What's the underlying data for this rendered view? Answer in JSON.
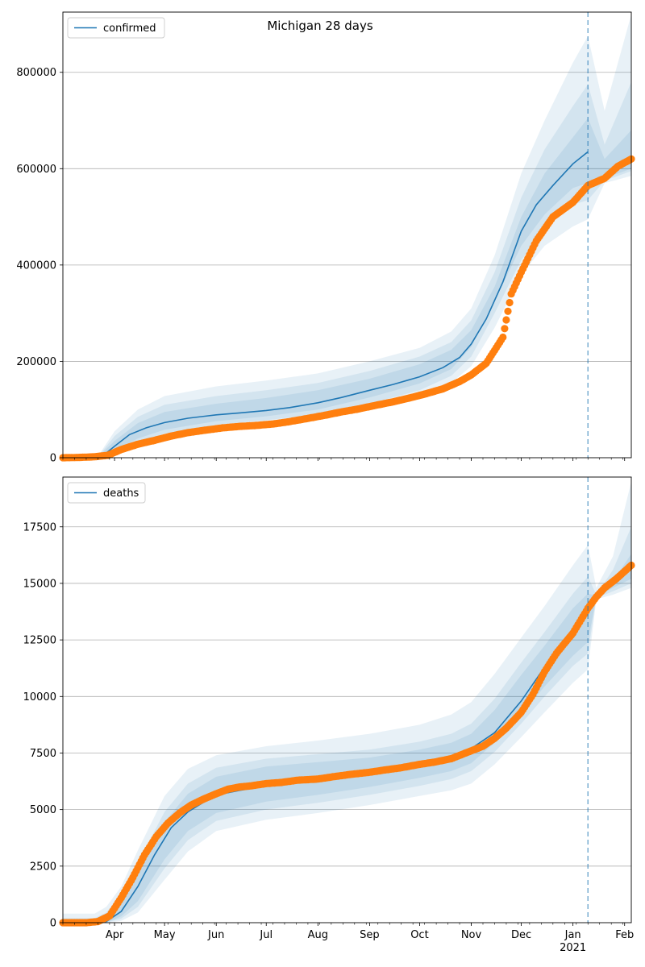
{
  "figure": {
    "title": "Michigan 28 days"
  },
  "chart_data": [
    {
      "type": "line",
      "name": "confirmed",
      "legend": {
        "label": "confirmed",
        "placement": "upper-left"
      },
      "x_axis": {
        "range": [
          "2020-03-01",
          "2021-02-05"
        ],
        "major_ticks": [
          {
            "date": "2020-04-01",
            "label": "Apr"
          },
          {
            "date": "2020-05-01",
            "label": "May"
          },
          {
            "date": "2020-06-01",
            "label": "Jun"
          },
          {
            "date": "2020-07-01",
            "label": "Jul"
          },
          {
            "date": "2020-08-01",
            "label": "Aug"
          },
          {
            "date": "2020-09-01",
            "label": "Sep"
          },
          {
            "date": "2020-10-01",
            "label": "Oct"
          },
          {
            "date": "2020-11-01",
            "label": "Nov"
          },
          {
            "date": "2020-12-01",
            "label": "Dec"
          },
          {
            "date": "2021-01-01",
            "label": "Jan",
            "sublabel": "2021"
          },
          {
            "date": "2021-02-01",
            "label": "Feb"
          }
        ]
      },
      "y_axis": {
        "range": [
          0,
          925000
        ],
        "ticks": [
          0,
          200000,
          400000,
          600000,
          800000
        ],
        "grid": true
      },
      "vline_date": "2021-01-10",
      "model_line": {
        "x": [
          "2020-03-01",
          "2020-03-20",
          "2020-03-25",
          "2020-04-01",
          "2020-04-10",
          "2020-04-20",
          "2020-05-01",
          "2020-05-15",
          "2020-06-01",
          "2020-06-15",
          "2020-07-01",
          "2020-07-15",
          "2020-08-01",
          "2020-08-15",
          "2020-09-01",
          "2020-09-15",
          "2020-10-01",
          "2020-10-15",
          "2020-10-25",
          "2020-11-01",
          "2020-11-10",
          "2020-11-20",
          "2020-12-01",
          "2020-12-10",
          "2020-12-20",
          "2021-01-01",
          "2021-01-10"
        ],
        "y": [
          0,
          1000,
          4000,
          24000,
          48000,
          62000,
          73000,
          82000,
          89000,
          93000,
          98000,
          104000,
          114000,
          125000,
          140000,
          152000,
          168000,
          187000,
          208000,
          236000,
          288000,
          365000,
          470000,
          525000,
          565000,
          610000,
          635000
        ]
      },
      "bands": [
        {
          "x": [
            "2020-03-01",
            "2020-03-22",
            "2020-04-01",
            "2020-04-15",
            "2020-05-01",
            "2020-06-01",
            "2020-07-01",
            "2020-08-01",
            "2020-09-01",
            "2020-10-01",
            "2020-10-20",
            "2020-11-01",
            "2020-11-15",
            "2020-12-01",
            "2020-12-15",
            "2021-01-01",
            "2021-01-10",
            "2021-01-20",
            "2021-02-05"
          ],
          "upper": [
            0,
            3000,
            55000,
            100000,
            128000,
            148000,
            160000,
            175000,
            200000,
            228000,
            262000,
            310000,
            420000,
            590000,
            700000,
            820000,
            875000,
            720000,
            920000
          ],
          "lower": [
            0,
            0,
            5000,
            25000,
            40000,
            58000,
            65000,
            78000,
            100000,
            125000,
            155000,
            190000,
            270000,
            380000,
            440000,
            480000,
            495000,
            570000,
            585000
          ]
        },
        {
          "x": [
            "2020-03-01",
            "2020-03-22",
            "2020-04-01",
            "2020-04-15",
            "2020-05-01",
            "2020-06-01",
            "2020-07-01",
            "2020-08-01",
            "2020-09-01",
            "2020-10-01",
            "2020-10-20",
            "2020-11-01",
            "2020-11-15",
            "2020-12-01",
            "2020-12-15",
            "2021-01-01",
            "2021-01-10",
            "2021-01-20",
            "2021-02-05"
          ],
          "upper": [
            0,
            2000,
            45000,
            85000,
            110000,
            128000,
            140000,
            155000,
            180000,
            210000,
            240000,
            285000,
            385000,
            540000,
            640000,
            730000,
            775000,
            650000,
            780000
          ],
          "lower": [
            0,
            0,
            10000,
            32000,
            50000,
            68000,
            78000,
            90000,
            112000,
            140000,
            170000,
            210000,
            300000,
            410000,
            475000,
            525000,
            535000,
            575000,
            595000
          ]
        },
        {
          "x": [
            "2020-03-01",
            "2020-03-22",
            "2020-04-01",
            "2020-04-15",
            "2020-05-01",
            "2020-06-01",
            "2020-07-01",
            "2020-08-01",
            "2020-09-01",
            "2020-10-01",
            "2020-10-20",
            "2020-11-01",
            "2020-11-15",
            "2020-12-01",
            "2020-12-15",
            "2021-01-01",
            "2021-01-10",
            "2021-01-20",
            "2021-02-05"
          ],
          "upper": [
            0,
            1500,
            35000,
            72000,
            95000,
            112000,
            124000,
            140000,
            164000,
            194000,
            224000,
            265000,
            355000,
            500000,
            590000,
            665000,
            705000,
            620000,
            680000
          ],
          "lower": [
            0,
            0,
            15000,
            40000,
            58000,
            76000,
            86000,
            100000,
            125000,
            154000,
            184000,
            230000,
            325000,
            440000,
            505000,
            560000,
            570000,
            580000,
            600000
          ]
        }
      ],
      "observed": {
        "x": [
          "2020-03-01",
          "2020-03-10",
          "2020-03-20",
          "2020-03-28",
          "2020-04-05",
          "2020-04-15",
          "2020-04-25",
          "2020-05-05",
          "2020-05-15",
          "2020-05-25",
          "2020-06-05",
          "2020-06-15",
          "2020-06-25",
          "2020-07-05",
          "2020-07-15",
          "2020-07-25",
          "2020-08-05",
          "2020-08-15",
          "2020-08-25",
          "2020-09-05",
          "2020-09-15",
          "2020-09-25",
          "2020-10-05",
          "2020-10-15",
          "2020-10-25",
          "2020-11-01",
          "2020-11-10",
          "2020-11-20",
          "2020-11-25",
          "2020-12-01",
          "2020-12-10",
          "2020-12-20",
          "2021-01-01",
          "2021-01-10",
          "2021-01-20",
          "2021-01-28",
          "2021-02-05"
        ],
        "y": [
          0,
          500,
          2000,
          5000,
          17000,
          28000,
          36000,
          45000,
          52000,
          57000,
          62000,
          65000,
          67000,
          70000,
          75000,
          81000,
          88000,
          95000,
          101000,
          109000,
          116000,
          124000,
          133000,
          143000,
          158000,
          172000,
          196000,
          250000,
          340000,
          385000,
          450000,
          500000,
          530000,
          565000,
          580000,
          605000,
          620000
        ]
      }
    },
    {
      "type": "line",
      "name": "deaths",
      "legend": {
        "label": "deaths",
        "placement": "upper-left"
      },
      "x_axis": {
        "range": [
          "2020-03-01",
          "2021-02-05"
        ],
        "major_ticks": [
          {
            "date": "2020-04-01",
            "label": "Apr"
          },
          {
            "date": "2020-05-01",
            "label": "May"
          },
          {
            "date": "2020-06-01",
            "label": "Jun"
          },
          {
            "date": "2020-07-01",
            "label": "Jul"
          },
          {
            "date": "2020-08-01",
            "label": "Aug"
          },
          {
            "date": "2020-09-01",
            "label": "Sep"
          },
          {
            "date": "2020-10-01",
            "label": "Oct"
          },
          {
            "date": "2020-11-01",
            "label": "Nov"
          },
          {
            "date": "2020-12-01",
            "label": "Dec"
          },
          {
            "date": "2021-01-01",
            "label": "Jan",
            "sublabel": "2021"
          },
          {
            "date": "2021-02-01",
            "label": "Feb"
          }
        ]
      },
      "y_axis": {
        "range": [
          0,
          19700
        ],
        "ticks": [
          0,
          2500,
          5000,
          7500,
          10000,
          12500,
          15000,
          17500
        ],
        "grid": true
      },
      "vline_date": "2021-01-10",
      "model_line": {
        "x": [
          "2020-03-01",
          "2020-03-20",
          "2020-03-27",
          "2020-04-05",
          "2020-04-15",
          "2020-04-25",
          "2020-05-05",
          "2020-05-15",
          "2020-05-25",
          "2020-06-05",
          "2020-06-15",
          "2020-07-01",
          "2020-07-15",
          "2020-08-01",
          "2020-08-15",
          "2020-09-01",
          "2020-09-15",
          "2020-10-01",
          "2020-10-15",
          "2020-11-01",
          "2020-11-15",
          "2020-12-01",
          "2020-12-15",
          "2021-01-01",
          "2021-01-10"
        ],
        "y": [
          0,
          0,
          50,
          500,
          1600,
          3000,
          4200,
          4900,
          5350,
          5700,
          5850,
          6050,
          6200,
          6350,
          6500,
          6700,
          6850,
          7050,
          7250,
          7700,
          8400,
          9800,
          11300,
          12900,
          13900
        ]
      },
      "bands": [
        {
          "x": [
            "2020-03-01",
            "2020-03-20",
            "2020-03-27",
            "2020-04-05",
            "2020-04-15",
            "2020-05-01",
            "2020-05-15",
            "2020-06-01",
            "2020-07-01",
            "2020-08-01",
            "2020-09-01",
            "2020-10-01",
            "2020-10-20",
            "2020-11-01",
            "2020-11-15",
            "2020-12-01",
            "2020-12-15",
            "2021-01-01",
            "2021-01-10",
            "2021-01-15",
            "2021-01-25",
            "2021-02-05"
          ],
          "upper": [
            400,
            400,
            700,
            1600,
            3200,
            5600,
            6800,
            7400,
            7800,
            8050,
            8350,
            8750,
            9200,
            9750,
            11000,
            12600,
            14000,
            15800,
            16700,
            14800,
            16200,
            19500
          ],
          "lower": [
            0,
            0,
            0,
            80,
            450,
            1900,
            3150,
            4050,
            4550,
            4850,
            5200,
            5600,
            5850,
            6150,
            7000,
            8200,
            9300,
            10600,
            11200,
            14300,
            14500,
            14800
          ]
        },
        {
          "x": [
            "2020-03-01",
            "2020-03-20",
            "2020-03-27",
            "2020-04-05",
            "2020-04-15",
            "2020-05-01",
            "2020-05-15",
            "2020-06-01",
            "2020-07-01",
            "2020-08-01",
            "2020-09-01",
            "2020-10-01",
            "2020-10-20",
            "2020-11-01",
            "2020-11-15",
            "2020-12-01",
            "2020-12-15",
            "2021-01-01",
            "2021-01-10",
            "2021-01-15",
            "2021-01-25",
            "2021-02-05"
          ],
          "upper": [
            200,
            200,
            450,
            1250,
            2650,
            4900,
            6150,
            6850,
            7250,
            7450,
            7650,
            8000,
            8350,
            8800,
            9900,
            11500,
            12850,
            14550,
            15300,
            14500,
            15600,
            17500
          ],
          "lower": [
            0,
            0,
            0,
            180,
            700,
            2400,
            3650,
            4500,
            5000,
            5300,
            5650,
            6050,
            6350,
            6700,
            7550,
            8800,
            10000,
            11350,
            11900,
            14350,
            14650,
            15000
          ]
        },
        {
          "x": [
            "2020-03-01",
            "2020-03-20",
            "2020-03-27",
            "2020-04-05",
            "2020-04-15",
            "2020-05-01",
            "2020-05-15",
            "2020-06-01",
            "2020-07-01",
            "2020-08-01",
            "2020-09-01",
            "2020-10-01",
            "2020-10-20",
            "2020-11-01",
            "2020-11-15",
            "2020-12-01",
            "2020-12-15",
            "2021-01-01",
            "2021-01-10",
            "2021-01-15",
            "2021-01-25",
            "2021-02-05"
          ],
          "upper": [
            100,
            100,
            300,
            1000,
            2250,
            4450,
            5700,
            6450,
            6900,
            7100,
            7300,
            7650,
            7950,
            8350,
            9400,
            10950,
            12250,
            13900,
            14550,
            14450,
            15100,
            16300
          ],
          "lower": [
            0,
            0,
            0,
            280,
            950,
            2800,
            4050,
            4850,
            5350,
            5650,
            6000,
            6400,
            6700,
            7050,
            7950,
            9200,
            10450,
            11800,
            12400,
            14400,
            14800,
            15200
          ]
        }
      ],
      "observed": {
        "x": [
          "2020-03-01",
          "2020-03-15",
          "2020-03-22",
          "2020-03-29",
          "2020-04-05",
          "2020-04-12",
          "2020-04-19",
          "2020-04-26",
          "2020-05-03",
          "2020-05-10",
          "2020-05-17",
          "2020-05-24",
          "2020-06-01",
          "2020-06-08",
          "2020-06-15",
          "2020-06-22",
          "2020-07-01",
          "2020-07-10",
          "2020-07-20",
          "2020-08-01",
          "2020-08-10",
          "2020-08-20",
          "2020-09-01",
          "2020-09-10",
          "2020-09-20",
          "2020-10-01",
          "2020-10-10",
          "2020-10-20",
          "2020-11-01",
          "2020-11-08",
          "2020-11-15",
          "2020-11-22",
          "2020-12-01",
          "2020-12-08",
          "2020-12-15",
          "2020-12-22",
          "2021-01-01",
          "2021-01-10",
          "2021-01-15",
          "2021-01-20",
          "2021-01-27",
          "2021-02-05"
        ],
        "y": [
          0,
          0,
          50,
          300,
          1100,
          2000,
          3000,
          3800,
          4400,
          4850,
          5200,
          5450,
          5700,
          5900,
          6000,
          6050,
          6150,
          6200,
          6300,
          6350,
          6450,
          6550,
          6650,
          6750,
          6850,
          7000,
          7100,
          7250,
          7600,
          7800,
          8150,
          8600,
          9300,
          10100,
          11100,
          11900,
          12800,
          13900,
          14400,
          14800,
          15200,
          15800
        ]
      }
    }
  ]
}
